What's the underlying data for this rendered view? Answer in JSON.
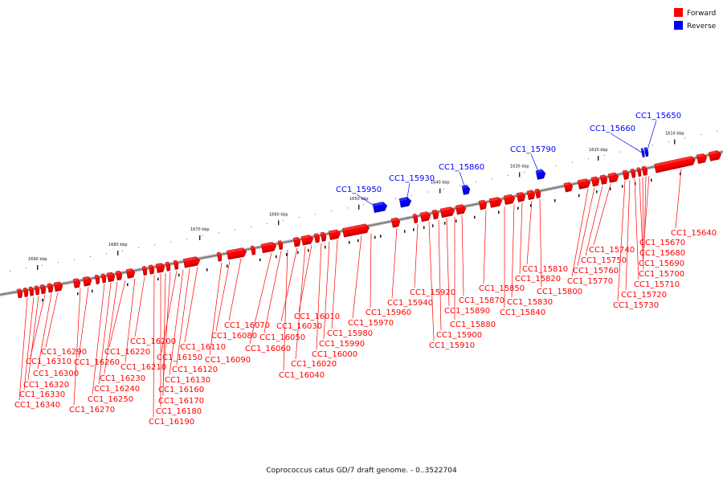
{
  "legend": [
    {
      "label": "Forward",
      "color": "#ff0000"
    },
    {
      "label": "Reverse",
      "color": "#0000ff"
    }
  ],
  "caption": "Coprococcus catus GD/7 draft genome. - 0..3522704",
  "colors": {
    "forward": "#ff0000",
    "reverse": "#0000ff",
    "backbone": "#888888"
  },
  "ticks": [
    "1690 kbp",
    "1680 kbp",
    "1670 kbp",
    "1660 kbp",
    "1650 kbp",
    "1640 kbp",
    "1630 kbp",
    "1620 kbp",
    "1610 kbp"
  ],
  "genes_forward": [
    "CC1_15640",
    "CC1_15670",
    "CC1_15680",
    "CC1_15690",
    "CC1_15700",
    "CC1_15710",
    "CC1_15720",
    "CC1_15730",
    "CC1_15740",
    "CC1_15750",
    "CC1_15760",
    "CC1_15770",
    "CC1_15800",
    "CC1_15810",
    "CC1_15820",
    "CC1_15830",
    "CC1_15840",
    "CC1_15850",
    "CC1_15870",
    "CC1_15880",
    "CC1_15890",
    "CC1_15900",
    "CC1_15910",
    "CC1_15920",
    "CC1_15940",
    "CC1_15960",
    "CC1_15970",
    "CC1_15980",
    "CC1_15990",
    "CC1_16000",
    "CC1_16010",
    "CC1_16020",
    "CC1_16030",
    "CC1_16040",
    "CC1_16050",
    "CC1_16060",
    "CC1_16070",
    "CC1_16080",
    "CC1_16090",
    "CC1_16110",
    "CC1_16120",
    "CC1_16130",
    "CC1_16150",
    "CC1_16160",
    "CC1_16170",
    "CC1_16180",
    "CC1_16190",
    "CC1_16200",
    "CC1_16210",
    "CC1_16220",
    "CC1_16230",
    "CC1_16240",
    "CC1_16250",
    "CC1_16260",
    "CC1_16270",
    "CC1_16290",
    "CC1_16300",
    "CC1_16310",
    "CC1_16320",
    "CC1_16330",
    "CC1_16340"
  ],
  "genes_reverse": [
    "CC1_15650",
    "CC1_15660",
    "CC1_15790",
    "CC1_15860",
    "CC1_15930",
    "CC1_15950"
  ]
}
